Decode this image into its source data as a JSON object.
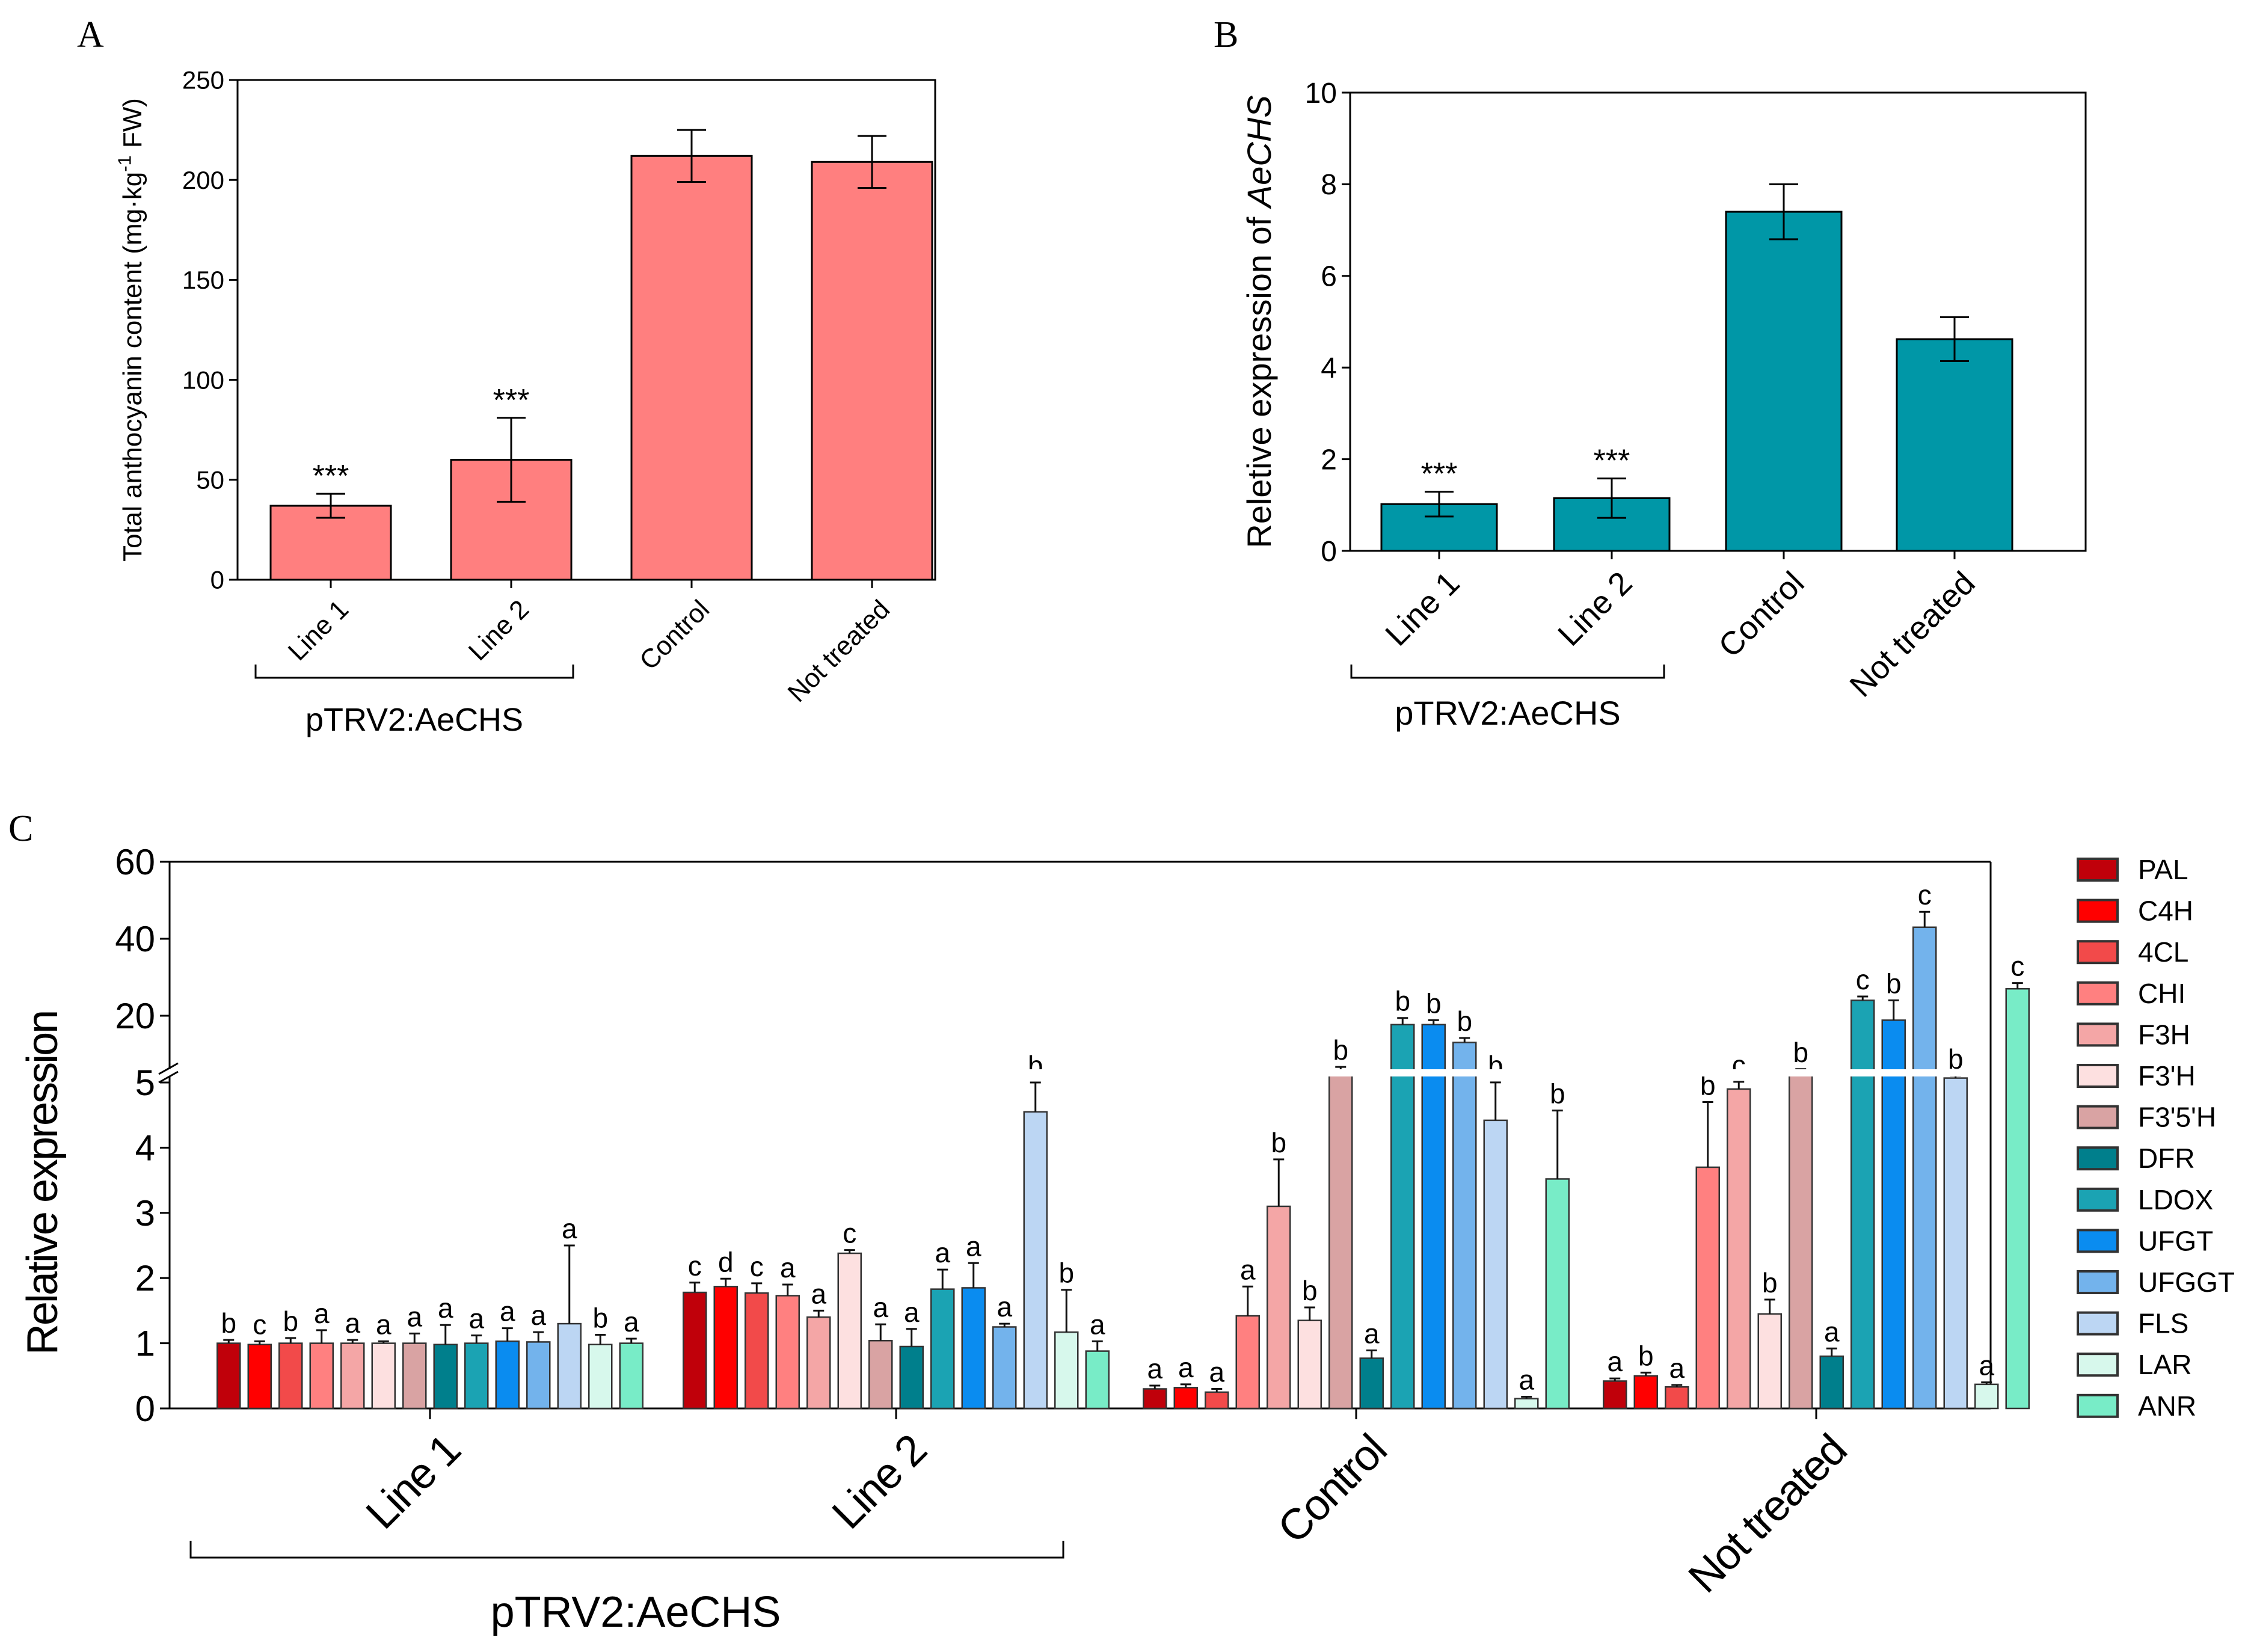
{
  "panel_labels": {
    "a": "A",
    "b": "B",
    "c": "C"
  },
  "chart_data": [
    {
      "type": "bar",
      "panel": "A",
      "title": "",
      "xlabel": "",
      "ylabel": "Total anthocyanin content (mg·kg⁻¹ FW)",
      "ylabel_parts": {
        "before": "Total anthocyanin content (mg·kg",
        "sup": "-1",
        "after": " FW)"
      },
      "ylim": [
        0,
        250
      ],
      "yticks": [
        0,
        50,
        100,
        150,
        200,
        250
      ],
      "categories": [
        "Line 1",
        "Line 2",
        "Control",
        "Not treated"
      ],
      "values": [
        37,
        60,
        212,
        209
      ],
      "errors": [
        6,
        21,
        13,
        13
      ],
      "annotations": [
        "***",
        "***",
        "",
        ""
      ],
      "group_label": "pTRV2:AeCHS",
      "bar_color": "#ff7f7f"
    },
    {
      "type": "bar",
      "panel": "B",
      "title": "",
      "xlabel": "",
      "ylabel": "Reletive expression of AeCHS",
      "ylabel_parts": {
        "before": "Reletive expression of ",
        "italic": "AeCHS"
      },
      "ylim": [
        0,
        10
      ],
      "yticks": [
        0,
        2,
        4,
        6,
        8,
        10
      ],
      "categories": [
        "Line 1",
        "Line 2",
        "Control",
        "Not treated"
      ],
      "values": [
        1.02,
        1.15,
        7.4,
        4.62
      ],
      "errors": [
        0.27,
        0.43,
        0.6,
        0.48
      ],
      "annotations": [
        "***",
        "***",
        "",
        ""
      ],
      "group_label": "pTRV2:AeCHS",
      "bar_color": "#0097a7"
    },
    {
      "type": "bar",
      "panel": "C",
      "title": "",
      "xlabel": "",
      "ylabel": "Relative expression",
      "y_axis_break": {
        "lower_range": [
          0,
          5
        ],
        "upper_range": [
          5,
          60
        ]
      },
      "yticks_lower": [
        0,
        1,
        2,
        3,
        4,
        5
      ],
      "yticks_upper": [
        20,
        40,
        60
      ],
      "categories": [
        "Line 1",
        "Line 2",
        "Control",
        "Not treated"
      ],
      "group_label": "pTRV2:AeCHS",
      "legend_position": "right",
      "series": [
        {
          "name": "PAL",
          "color": "#c0000a",
          "values": [
            1.0,
            1.78,
            0.3,
            0.42
          ],
          "errors": [
            0.05,
            0.15,
            0.05,
            0.04
          ],
          "letters": [
            "b",
            "c",
            "a",
            "a"
          ]
        },
        {
          "name": "C4H",
          "color": "#ff0000",
          "values": [
            0.98,
            1.87,
            0.32,
            0.5
          ],
          "errors": [
            0.05,
            0.12,
            0.05,
            0.05
          ],
          "letters": [
            "c",
            "d",
            "a",
            "b"
          ]
        },
        {
          "name": "4CL",
          "color": "#f24a4a",
          "values": [
            1.0,
            1.77,
            0.25,
            0.33
          ],
          "errors": [
            0.08,
            0.15,
            0.05,
            0.03
          ],
          "letters": [
            "b",
            "c",
            "a",
            "a"
          ]
        },
        {
          "name": "CHI",
          "color": "#ff8080",
          "values": [
            1.0,
            1.73,
            1.42,
            3.7
          ],
          "errors": [
            0.2,
            0.17,
            0.45,
            1.0
          ],
          "letters": [
            "a",
            "a",
            "a",
            "b"
          ]
        },
        {
          "name": "F3H",
          "color": "#f4a6a6",
          "values": [
            1.0,
            1.4,
            3.1,
            4.9
          ],
          "errors": [
            0.05,
            0.1,
            0.72,
            0.25
          ],
          "letters": [
            "a",
            "a",
            "b",
            "c"
          ]
        },
        {
          "name": "F3'H",
          "color": "#fde0e0",
          "values": [
            1.0,
            2.38,
            1.35,
            1.45
          ],
          "errors": [
            0.03,
            0.05,
            0.2,
            0.22
          ],
          "letters": [
            "a",
            "c",
            "b",
            "b"
          ]
        },
        {
          "name": "F3'5'H",
          "color": "#d9a3a3",
          "values": [
            1.0,
            1.04,
            7,
            7
          ],
          "errors": [
            0.15,
            0.25,
            1.5,
            1.0
          ],
          "letters": [
            "a",
            "a",
            "b",
            "b"
          ]
        },
        {
          "name": "DFR",
          "color": "#007f8c",
          "values": [
            0.98,
            0.95,
            0.77,
            0.8
          ],
          "errors": [
            0.3,
            0.27,
            0.12,
            0.12
          ],
          "letters": [
            "a",
            "a",
            "a",
            "a"
          ]
        },
        {
          "name": "LDOX",
          "color": "#1ba3b3",
          "values": [
            1.0,
            1.83,
            18,
            24
          ],
          "errors": [
            0.12,
            0.3,
            1.5,
            1.0
          ],
          "letters": [
            "a",
            "a",
            "b",
            "c"
          ]
        },
        {
          "name": "UFGT",
          "color": "#0a8cf0",
          "values": [
            1.03,
            1.85,
            18,
            19
          ],
          "errors": [
            0.2,
            0.38,
            1.0,
            5.0
          ],
          "letters": [
            "a",
            "a",
            "b",
            "b"
          ]
        },
        {
          "name": "UFGGT",
          "color": "#73b3ec",
          "values": [
            1.02,
            1.25,
            14,
            43
          ],
          "errors": [
            0.15,
            0.05,
            1.0,
            4.0
          ],
          "letters": [
            "a",
            "a",
            "b",
            "c"
          ]
        },
        {
          "name": "FLS",
          "color": "#bcd6f3",
          "values": [
            1.3,
            4.55,
            4.42,
            6
          ],
          "errors": [
            1.2,
            0.45,
            0.6,
            0.5
          ],
          "letters": [
            "a",
            "b",
            "b",
            "b"
          ]
        },
        {
          "name": "LAR",
          "color": "#d7f8ec",
          "values": [
            0.98,
            1.17,
            0.15,
            0.37
          ],
          "errors": [
            0.15,
            0.65,
            0.03,
            0.03
          ],
          "letters": [
            "b",
            "b",
            "a",
            "a"
          ]
        },
        {
          "name": "ANR",
          "color": "#78ecc7",
          "values": [
            1.0,
            0.88,
            3.52,
            27
          ],
          "errors": [
            0.07,
            0.15,
            1.05,
            1.5
          ],
          "letters": [
            "a",
            "a",
            "b",
            "c"
          ]
        }
      ]
    }
  ]
}
